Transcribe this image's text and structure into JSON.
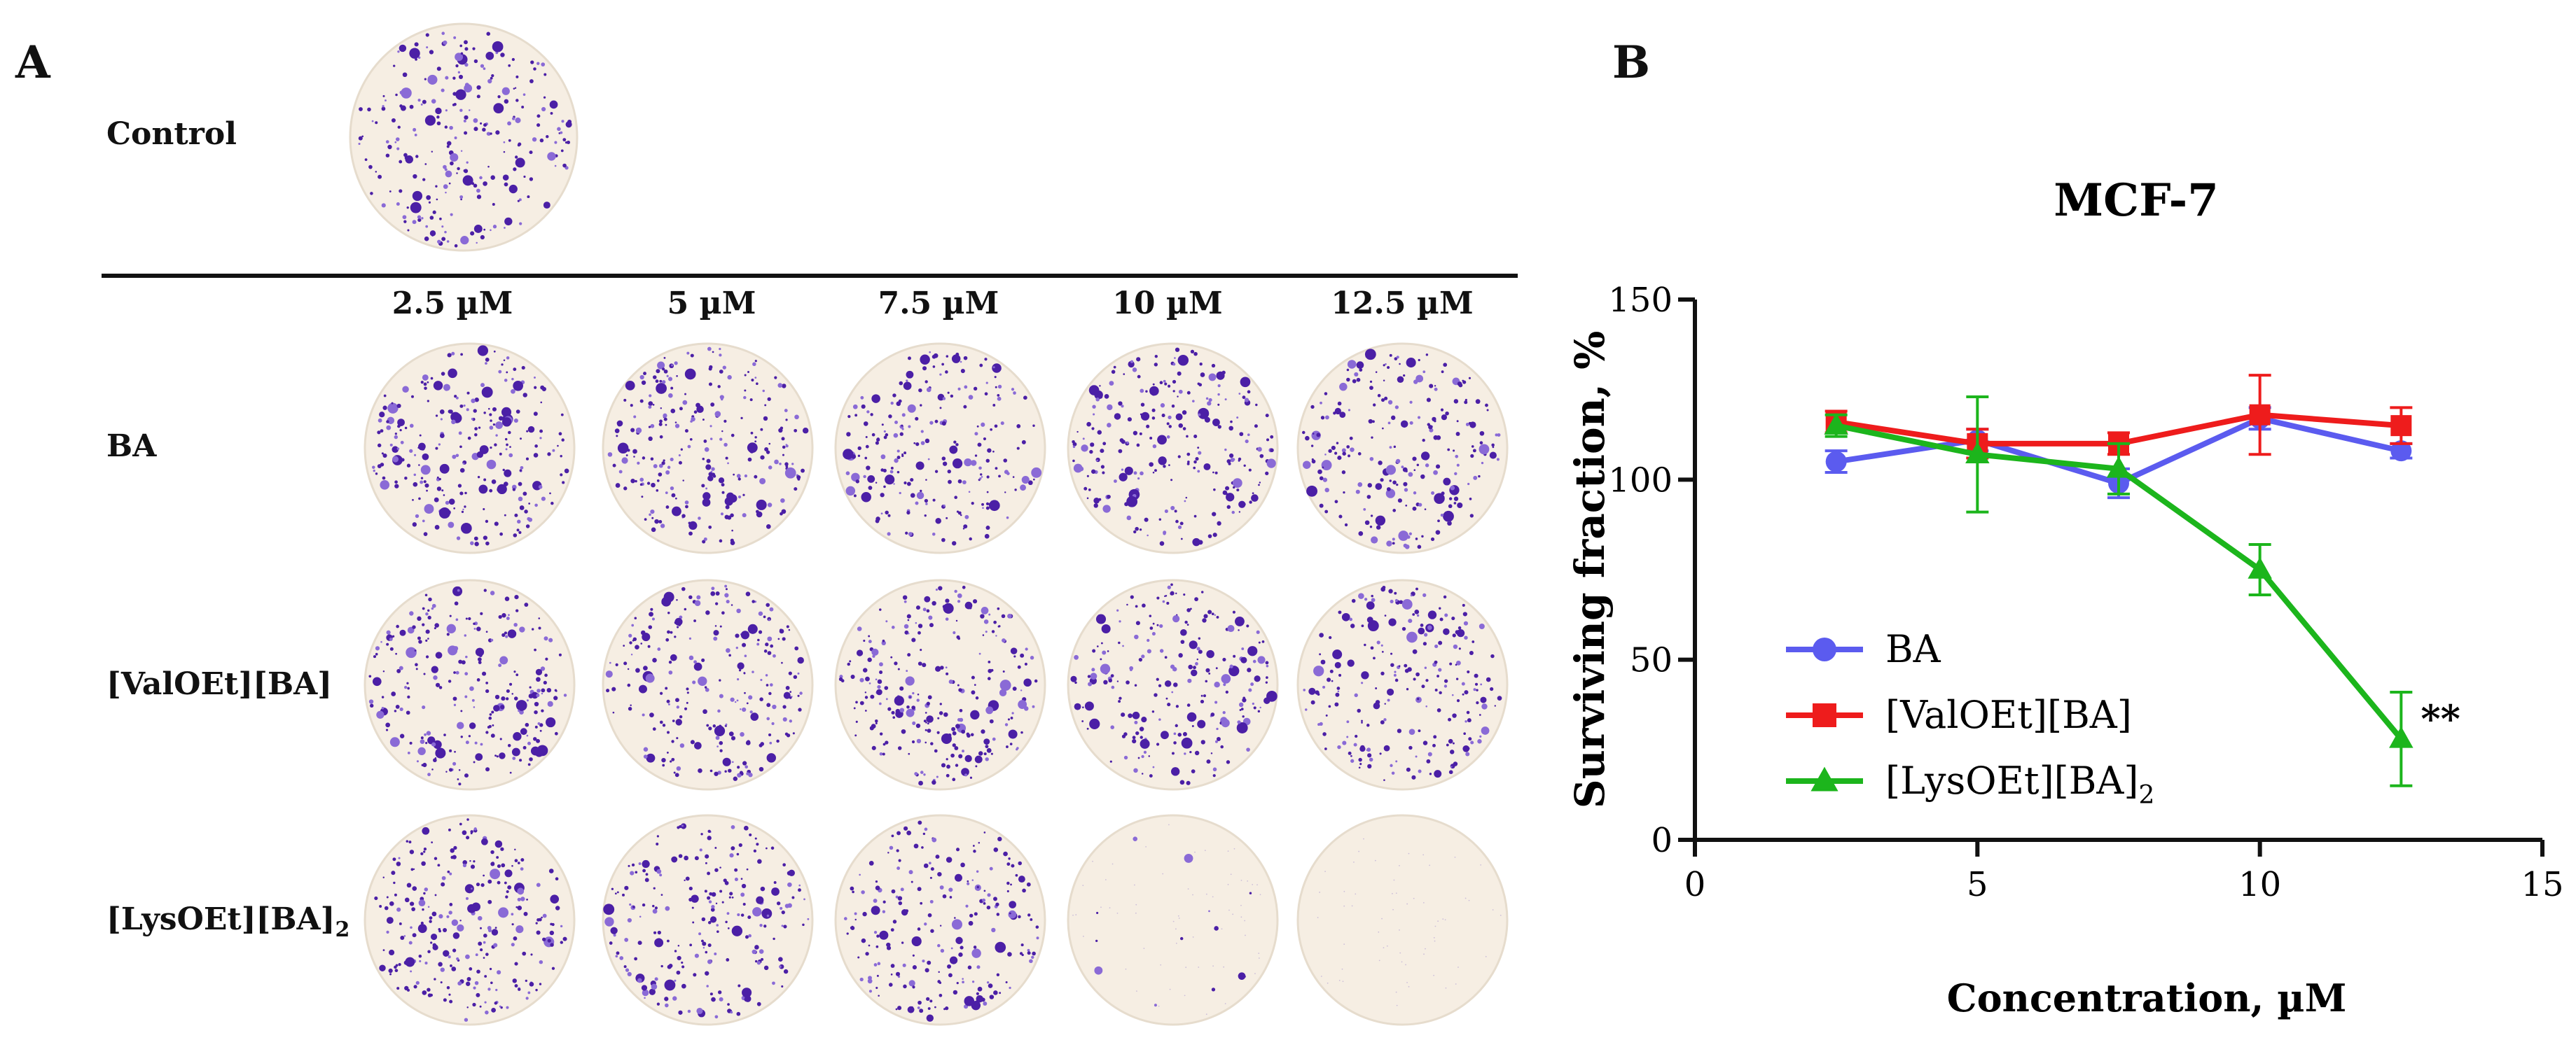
{
  "panel_a": {
    "letter": "A",
    "control_label": "Control",
    "columns": [
      "2.5 µM",
      "5 µM",
      "7.5 µM",
      "10 µM",
      "12.5 µM"
    ],
    "rows": [
      {
        "label": "BA",
        "sub": ""
      },
      {
        "label": "[ValOEt][BA]",
        "sub": ""
      },
      {
        "label": "[LysOEt][BA]",
        "sub": "2"
      }
    ],
    "colony_density": {
      "control": 1.0,
      "rows": [
        [
          1.0,
          1.0,
          0.9,
          0.95,
          0.9
        ],
        [
          1.0,
          0.95,
          1.0,
          0.9,
          0.9
        ],
        [
          1.0,
          0.9,
          0.85,
          0.05,
          0.0
        ]
      ]
    },
    "colors": {
      "dish": "#f6eee3",
      "dish_edge": "#e6dccd",
      "colony": "#4b1fa6",
      "colony_light": "#8a6ad6"
    }
  },
  "panel_b": {
    "letter": "B"
  },
  "chart_data": {
    "type": "line",
    "title": "MCF-7",
    "xlabel": "Concentration, µM",
    "ylabel": "Surviving fraction, %",
    "xlim": [
      0,
      15
    ],
    "ylim": [
      0,
      150
    ],
    "xticks": [
      0,
      5,
      10,
      15
    ],
    "yticks": [
      0,
      50,
      100,
      150
    ],
    "x": [
      2.5,
      5,
      7.5,
      10,
      12.5
    ],
    "legend": "center-left",
    "series": [
      {
        "name": "BA",
        "sub": "",
        "color": "#5b5bef",
        "marker": "circle",
        "values": [
          105,
          111,
          99,
          117,
          108
        ],
        "errors": [
          3,
          3,
          4,
          3,
          2
        ]
      },
      {
        "name": "[ValOEt][BA]",
        "sub": "",
        "color": "#ee1c1c",
        "marker": "square",
        "values": [
          116,
          110,
          110,
          118,
          115
        ],
        "errors": [
          3,
          4,
          3,
          11,
          5
        ]
      },
      {
        "name": "[LysOEt][BA]",
        "sub": "2",
        "color": "#1cb51c",
        "marker": "triangle",
        "values": [
          115,
          107,
          103,
          75,
          28
        ],
        "errors": [
          3,
          16,
          7,
          7,
          13
        ]
      }
    ],
    "annotations": [
      {
        "text": "**",
        "x": 12.5,
        "y": 28
      }
    ]
  }
}
